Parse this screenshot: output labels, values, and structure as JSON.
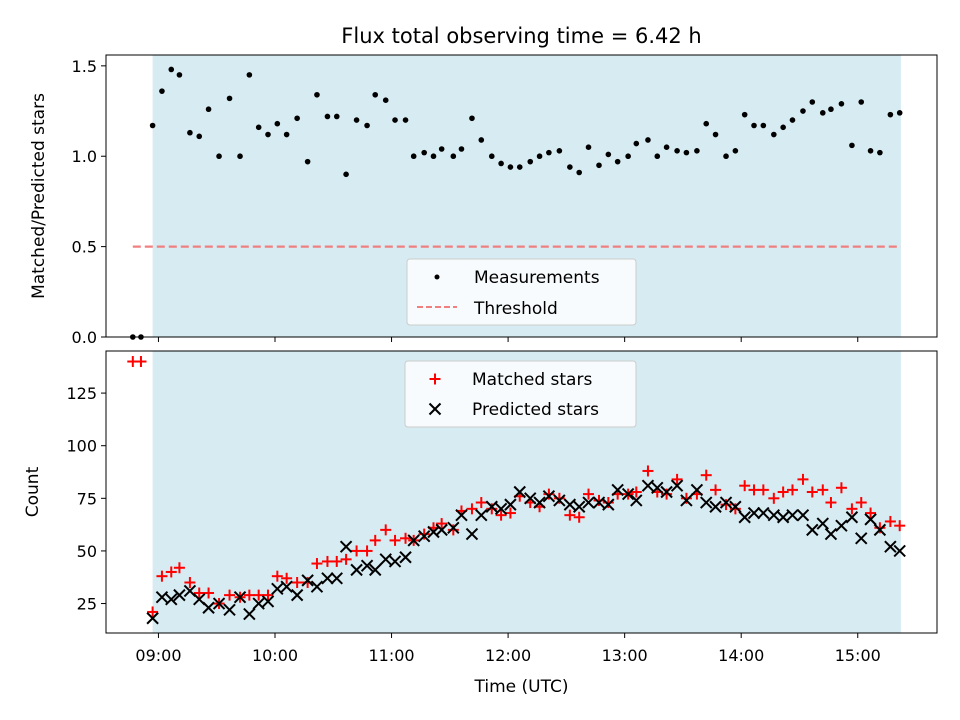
{
  "chart_data": [
    {
      "type": "scatter",
      "title": "Flux total observing time = 6.42 h",
      "xlabel": "",
      "ylabel": "Matched/Predicted stars",
      "xlim": [
        8.55,
        15.68
      ],
      "ylim": [
        0,
        1.56
      ],
      "yticks": [
        0.0,
        0.5,
        1.0,
        1.5
      ],
      "ytick_labels": [
        "0.0",
        "0.5",
        "1.0",
        "1.5"
      ],
      "shaded_span": [
        8.95,
        15.37
      ],
      "shade_color": "#add8e6",
      "legend_position": "lower-center",
      "series": [
        {
          "name": "Measurements",
          "kind": "scatter",
          "color": "#000000",
          "x": [
            8.78,
            8.85,
            8.95,
            9.03,
            9.11,
            9.18,
            9.27,
            9.35,
            9.43,
            9.52,
            9.61,
            9.7,
            9.78,
            9.86,
            9.94,
            10.02,
            10.1,
            10.19,
            10.28,
            10.36,
            10.45,
            10.53,
            10.61,
            10.7,
            10.79,
            10.86,
            10.95,
            11.03,
            11.12,
            11.19,
            11.28,
            11.36,
            11.43,
            11.53,
            11.6,
            11.69,
            11.77,
            11.86,
            11.94,
            12.02,
            12.1,
            12.19,
            12.27,
            12.35,
            12.44,
            12.53,
            12.61,
            12.69,
            12.78,
            12.86,
            12.94,
            13.03,
            13.1,
            13.2,
            13.28,
            13.36,
            13.45,
            13.53,
            13.62,
            13.7,
            13.78,
            13.87,
            13.95,
            14.03,
            14.11,
            14.19,
            14.28,
            14.36,
            14.44,
            14.53,
            14.61,
            14.7,
            14.77,
            14.86,
            14.95,
            15.03,
            15.11,
            15.19,
            15.28,
            15.36
          ],
          "y": [
            0.0,
            0.0,
            1.17,
            1.36,
            1.48,
            1.45,
            1.13,
            1.11,
            1.26,
            1.0,
            1.32,
            1.0,
            1.45,
            1.16,
            1.12,
            1.18,
            1.12,
            1.21,
            0.97,
            1.34,
            1.22,
            1.22,
            0.9,
            1.2,
            1.17,
            1.34,
            1.31,
            1.2,
            1.2,
            1.0,
            1.02,
            1.0,
            1.04,
            1.0,
            1.04,
            1.21,
            1.09,
            1.0,
            0.96,
            0.94,
            0.94,
            0.97,
            1.0,
            1.02,
            1.03,
            0.94,
            0.91,
            1.05,
            0.95,
            1.01,
            0.97,
            1.0,
            1.07,
            1.09,
            1.0,
            1.05,
            1.03,
            1.02,
            1.03,
            1.18,
            1.12,
            1.0,
            1.03,
            1.23,
            1.17,
            1.17,
            1.12,
            1.16,
            1.2,
            1.25,
            1.3,
            1.24,
            1.26,
            1.29,
            1.06,
            1.3,
            1.03,
            1.02,
            1.23,
            1.24
          ]
        },
        {
          "name": "Threshold",
          "kind": "line",
          "style": "dashed",
          "color": "#f08080",
          "x": [
            8.78,
            15.37
          ],
          "y": [
            0.5,
            0.5
          ]
        }
      ]
    },
    {
      "type": "scatter",
      "title": "",
      "xlabel": "Time (UTC)",
      "ylabel": "Count",
      "xlim": [
        8.55,
        15.68
      ],
      "ylim": [
        11,
        145
      ],
      "yticks": [
        25,
        50,
        75,
        100,
        125
      ],
      "ytick_labels": [
        "25",
        "50",
        "75",
        "100",
        "125"
      ],
      "xticks": [
        9,
        10,
        11,
        12,
        13,
        14,
        15
      ],
      "xtick_labels": [
        "09:00",
        "10:00",
        "11:00",
        "12:00",
        "13:00",
        "14:00",
        "15:00"
      ],
      "shaded_span": [
        8.95,
        15.37
      ],
      "shade_color": "#add8e6",
      "legend_position": "upper-center",
      "series": [
        {
          "name": "Matched stars",
          "kind": "plus",
          "color": "#ff0000",
          "x": [
            8.78,
            8.85,
            8.95,
            9.03,
            9.11,
            9.18,
            9.27,
            9.35,
            9.43,
            9.52,
            9.61,
            9.7,
            9.78,
            9.86,
            9.94,
            10.02,
            10.1,
            10.19,
            10.28,
            10.36,
            10.45,
            10.53,
            10.61,
            10.7,
            10.79,
            10.86,
            10.95,
            11.03,
            11.12,
            11.19,
            11.28,
            11.36,
            11.43,
            11.53,
            11.6,
            11.69,
            11.77,
            11.86,
            11.94,
            12.02,
            12.1,
            12.19,
            12.27,
            12.35,
            12.44,
            12.53,
            12.61,
            12.69,
            12.78,
            12.86,
            12.94,
            13.03,
            13.1,
            13.2,
            13.28,
            13.36,
            13.45,
            13.53,
            13.62,
            13.7,
            13.78,
            13.87,
            13.95,
            14.03,
            14.11,
            14.19,
            14.28,
            14.36,
            14.44,
            14.53,
            14.61,
            14.7,
            14.77,
            14.86,
            14.95,
            15.03,
            15.11,
            15.19,
            15.28,
            15.36
          ],
          "y": [
            140,
            140,
            21,
            38,
            40,
            42,
            35,
            30,
            30,
            25,
            29,
            28,
            29,
            29,
            29,
            38,
            37,
            35,
            35,
            44,
            45,
            45,
            46,
            50,
            50,
            55,
            60,
            55,
            56,
            55,
            58,
            61,
            63,
            60,
            69,
            70,
            73,
            70,
            67,
            68,
            76,
            73,
            71,
            77,
            75,
            67,
            66,
            77,
            74,
            73,
            77,
            77,
            78,
            88,
            78,
            77,
            84,
            75,
            77,
            86,
            79,
            72,
            70,
            81,
            79,
            79,
            75,
            78,
            79,
            84,
            78,
            79,
            73,
            80,
            70,
            73,
            68,
            61,
            64,
            62
          ]
        },
        {
          "name": "Predicted stars",
          "kind": "x",
          "color": "#000000",
          "x": [
            8.95,
            9.03,
            9.11,
            9.18,
            9.27,
            9.35,
            9.43,
            9.52,
            9.61,
            9.7,
            9.78,
            9.86,
            9.94,
            10.02,
            10.1,
            10.19,
            10.28,
            10.36,
            10.45,
            10.53,
            10.61,
            10.7,
            10.79,
            10.86,
            10.95,
            11.03,
            11.12,
            11.19,
            11.28,
            11.36,
            11.43,
            11.53,
            11.6,
            11.69,
            11.77,
            11.86,
            11.94,
            12.02,
            12.1,
            12.19,
            12.27,
            12.35,
            12.44,
            12.53,
            12.61,
            12.69,
            12.78,
            12.86,
            12.94,
            13.03,
            13.1,
            13.2,
            13.28,
            13.36,
            13.45,
            13.53,
            13.62,
            13.7,
            13.78,
            13.87,
            13.95,
            14.03,
            14.11,
            14.19,
            14.28,
            14.36,
            14.44,
            14.53,
            14.61,
            14.7,
            14.77,
            14.86,
            14.95,
            15.03,
            15.11,
            15.19,
            15.28,
            15.36
          ],
          "y": [
            18,
            28,
            27,
            29,
            31,
            27,
            23,
            25,
            22,
            28,
            20,
            25,
            26,
            32,
            33,
            29,
            36,
            33,
            37,
            37,
            52,
            41,
            43,
            41,
            46,
            45,
            47,
            55,
            57,
            59,
            60,
            61,
            67,
            58,
            67,
            71,
            70,
            72,
            78,
            75,
            73,
            76,
            74,
            72,
            71,
            73,
            73,
            72,
            79,
            77,
            74,
            81,
            80,
            78,
            81,
            74,
            79,
            73,
            71,
            73,
            71,
            66,
            68,
            68,
            67,
            66,
            67,
            67,
            60,
            63,
            58,
            62,
            66,
            56,
            65,
            60,
            52,
            50
          ]
        }
      ]
    }
  ]
}
